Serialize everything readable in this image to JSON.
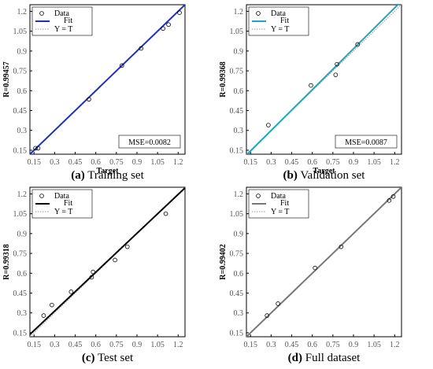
{
  "chart_data": [
    {
      "type": "scatter",
      "caption_letter": "(a)",
      "caption_text": " Training set",
      "xlabel": "Target",
      "ylabel": "R=0.99457",
      "xlim": [
        0.12,
        1.25
      ],
      "ylim": [
        0.12,
        1.25
      ],
      "xticks": [
        "0.15",
        "0.3",
        "0.45",
        "0.6",
        "0.75",
        "0.9",
        "1.05",
        "1.2"
      ],
      "yticks": [
        "0.15",
        "0.3",
        "0.45",
        "0.6",
        "0.75",
        "0.9",
        "1.05",
        "1.2"
      ],
      "tick_values": [
        0.15,
        0.3,
        0.45,
        0.6,
        0.75,
        0.9,
        1.05,
        1.2
      ],
      "legend": [
        "Data",
        "Fit",
        "Y = T"
      ],
      "fit_color": "#1f2fbf",
      "fit": [
        1.0,
        0.0
      ],
      "mse": "MSE=0.0082",
      "points": [
        {
          "x": 0.16,
          "y": 0.165
        },
        {
          "x": 0.18,
          "y": 0.165
        },
        {
          "x": 0.55,
          "y": 0.535
        },
        {
          "x": 0.79,
          "y": 0.79
        },
        {
          "x": 0.93,
          "y": 0.92
        },
        {
          "x": 1.09,
          "y": 1.07
        },
        {
          "x": 1.13,
          "y": 1.1
        },
        {
          "x": 1.21,
          "y": 1.19
        }
      ]
    },
    {
      "type": "scatter",
      "caption_letter": "(b)",
      "caption_text": " Validation set",
      "xlabel": "Target",
      "ylabel": "R=0.99368",
      "xlim": [
        0.12,
        1.25
      ],
      "ylim": [
        0.12,
        1.25
      ],
      "xticks": [
        "0.15",
        "0.3",
        "0.45",
        "0.6",
        "0.75",
        "0.9",
        "1.05",
        "1.2"
      ],
      "yticks": [
        "0.15",
        "0.3",
        "0.45",
        "0.6",
        "0.75",
        "0.9",
        "1.05",
        "1.2"
      ],
      "tick_values": [
        0.15,
        0.3,
        0.45,
        0.6,
        0.75,
        0.9,
        1.05,
        1.2
      ],
      "legend": [
        "Data",
        "Fit",
        "Y = T"
      ],
      "fit_color": "#1ca7bf",
      "fit": [
        1.03,
        -0.01
      ],
      "mse": "MSE=0.0087",
      "points": [
        {
          "x": 0.28,
          "y": 0.34
        },
        {
          "x": 0.59,
          "y": 0.64
        },
        {
          "x": 0.77,
          "y": 0.72
        },
        {
          "x": 0.78,
          "y": 0.8
        },
        {
          "x": 0.93,
          "y": 0.95
        }
      ]
    },
    {
      "type": "scatter",
      "caption_letter": "(c)",
      "caption_text": " Test set",
      "xlabel": "",
      "ylabel": "R=0.99318",
      "xlim": [
        0.12,
        1.25
      ],
      "ylim": [
        0.12,
        1.25
      ],
      "xticks": [
        "0.15",
        "0.3",
        "0.45",
        "0.6",
        "0.75",
        "0.9",
        "1.05",
        "1.2"
      ],
      "yticks": [
        "0.15",
        "0.3",
        "0.45",
        "0.6",
        "0.75",
        "0.9",
        "1.05",
        "1.2"
      ],
      "tick_values": [
        0.15,
        0.3,
        0.45,
        0.6,
        0.75,
        0.9,
        1.05,
        1.2
      ],
      "legend": [
        "Data",
        "Fit",
        "Y = T"
      ],
      "fit_color": "#000000",
      "fit": [
        0.98,
        0.02
      ],
      "mse": "",
      "points": [
        {
          "x": 0.22,
          "y": 0.28
        },
        {
          "x": 0.28,
          "y": 0.36
        },
        {
          "x": 0.42,
          "y": 0.46
        },
        {
          "x": 0.57,
          "y": 0.57
        },
        {
          "x": 0.58,
          "y": 0.61
        },
        {
          "x": 0.74,
          "y": 0.7
        },
        {
          "x": 0.83,
          "y": 0.8
        },
        {
          "x": 1.11,
          "y": 1.05
        }
      ]
    },
    {
      "type": "scatter",
      "caption_letter": "(d)",
      "caption_text": " Full dataset",
      "xlabel": "",
      "ylabel": "R=0.99402",
      "xlim": [
        0.12,
        1.25
      ],
      "ylim": [
        0.12,
        1.25
      ],
      "xticks": [
        "0.15",
        "0.3",
        "0.45",
        "0.6",
        "0.75",
        "0.9",
        "1.05",
        "1.2"
      ],
      "yticks": [
        "0.15",
        "0.3",
        "0.45",
        "0.6",
        "0.75",
        "0.9",
        "1.05",
        "1.2"
      ],
      "tick_values": [
        0.15,
        0.3,
        0.45,
        0.6,
        0.75,
        0.9,
        1.05,
        1.2
      ],
      "legend": [
        "Data",
        "Fit",
        "Y = T"
      ],
      "fit_color": "#777777",
      "fit": [
        1.0,
        0.0
      ],
      "mse": "",
      "points": [
        {
          "x": 0.27,
          "y": 0.28
        },
        {
          "x": 0.35,
          "y": 0.37
        },
        {
          "x": 0.62,
          "y": 0.64
        },
        {
          "x": 0.81,
          "y": 0.8
        },
        {
          "x": 1.16,
          "y": 1.15
        },
        {
          "x": 1.19,
          "y": 1.18
        }
      ]
    }
  ]
}
